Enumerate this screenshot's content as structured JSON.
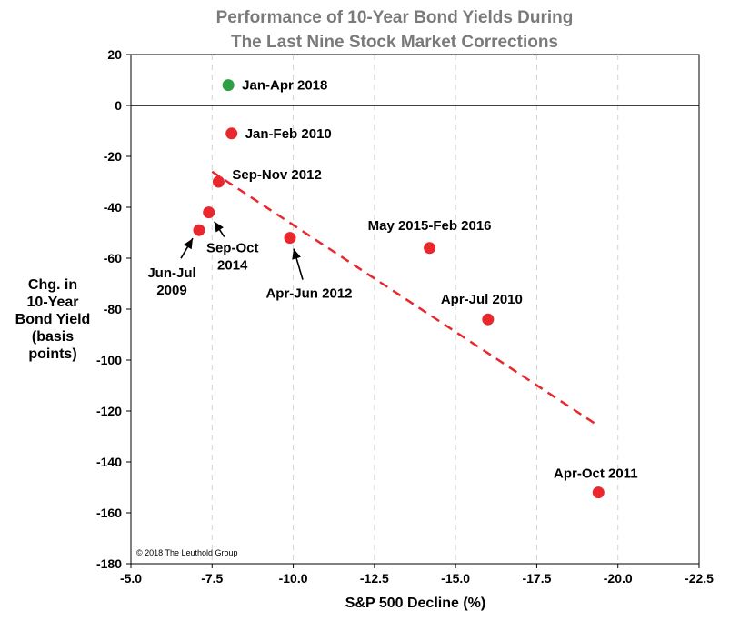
{
  "chart_data": {
    "type": "scatter",
    "title": [
      "Performance of 10-Year Bond Yields During",
      "The Last Nine Stock Market Corrections"
    ],
    "xlabel": "S&P 500 Decline (%)",
    "ylabel": [
      "Chg. in",
      "10-Year",
      "Bond Yield",
      "(basis",
      "points)"
    ],
    "xlim": [
      -5.0,
      -22.5
    ],
    "ylim": [
      -180,
      20
    ],
    "x_ticks": [
      "-5.0",
      "-7.5",
      "-10.0",
      "-12.5",
      "-15.0",
      "-17.5",
      "-20.0",
      "-22.5"
    ],
    "y_ticks": [
      "20",
      "0",
      "-20",
      "-40",
      "-60",
      "-80",
      "-100",
      "-120",
      "-140",
      "-160",
      "-180"
    ],
    "grid": "vertical dashed",
    "credit": "© 2018 The Leuthold Group",
    "points": [
      {
        "label": "Jan-Apr 2018",
        "x": -8.0,
        "y": 8,
        "color": "#2ea043"
      },
      {
        "label": "Jan-Feb 2010",
        "x": -8.1,
        "y": -11,
        "color": "#e8282d"
      },
      {
        "label": "Sep-Nov 2012",
        "x": -7.7,
        "y": -30,
        "color": "#e8282d"
      },
      {
        "label": "Sep-Oct 2014",
        "x": -7.4,
        "y": -42,
        "color": "#e8282d"
      },
      {
        "label": "Jun-Jul 2009",
        "x": -7.1,
        "y": -49,
        "color": "#e8282d"
      },
      {
        "label": "Apr-Jun 2012",
        "x": -9.9,
        "y": -52,
        "color": "#e8282d"
      },
      {
        "label": "May 2015-Feb 2016",
        "x": -14.2,
        "y": -56,
        "color": "#e8282d"
      },
      {
        "label": "Apr-Jul 2010",
        "x": -16.0,
        "y": -84,
        "color": "#e8282d"
      },
      {
        "label": "Apr-Oct 2011",
        "x": -19.4,
        "y": -152,
        "color": "#e8282d"
      }
    ],
    "trendline": {
      "x": [
        -7.5,
        -19.3
      ],
      "y": [
        -26,
        -125
      ],
      "color": "#e8282d",
      "style": "dashed"
    }
  }
}
